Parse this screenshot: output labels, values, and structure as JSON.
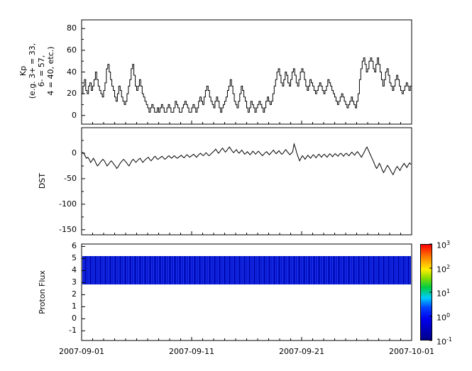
{
  "figure": {
    "background": "#ffffff",
    "line_color": "#000000",
    "band_color": "#0013cc"
  },
  "x_axis": {
    "tick_labels": [
      "2007-09-01",
      "2007-09-11",
      "2007-09-21",
      "2007-10-01"
    ],
    "tick_days": [
      0,
      10,
      20,
      30
    ],
    "total_days": 30
  },
  "chart_data": [
    {
      "id": "kp",
      "type": "line",
      "subtype": "step",
      "ylabel": "Kp (e.g. 3+ = 33, 6- = 57, 4 = 40, etc.)",
      "ylabel_lines": [
        "Kp",
        "(e.g. 3+ = 33,",
        "6- = 57,",
        "4 = 40, etc.)"
      ],
      "x_start": "2007-09-01",
      "x_end": "2007-10-01",
      "points_per_day": 8,
      "yticks": [
        0,
        20,
        40,
        60,
        80
      ],
      "yminor": [
        10,
        30,
        50,
        70
      ],
      "ylim": [
        -8,
        88
      ],
      "values": [
        20,
        27,
        33,
        23,
        20,
        27,
        30,
        23,
        27,
        33,
        40,
        33,
        27,
        23,
        20,
        17,
        23,
        30,
        43,
        47,
        40,
        33,
        27,
        23,
        17,
        13,
        20,
        27,
        23,
        17,
        13,
        10,
        13,
        20,
        27,
        33,
        43,
        47,
        37,
        27,
        23,
        27,
        33,
        27,
        20,
        17,
        13,
        10,
        7,
        3,
        7,
        10,
        7,
        3,
        3,
        7,
        3,
        7,
        10,
        7,
        3,
        3,
        7,
        10,
        7,
        3,
        3,
        7,
        13,
        10,
        7,
        3,
        3,
        7,
        10,
        13,
        10,
        7,
        3,
        3,
        7,
        10,
        7,
        3,
        7,
        13,
        17,
        13,
        10,
        17,
        23,
        27,
        23,
        17,
        13,
        10,
        7,
        13,
        17,
        13,
        7,
        3,
        7,
        10,
        13,
        17,
        23,
        27,
        33,
        27,
        20,
        13,
        10,
        7,
        13,
        20,
        27,
        23,
        17,
        13,
        7,
        3,
        7,
        13,
        10,
        7,
        3,
        7,
        10,
        13,
        10,
        7,
        3,
        7,
        13,
        17,
        13,
        10,
        13,
        20,
        27,
        33,
        40,
        43,
        37,
        30,
        27,
        33,
        40,
        37,
        30,
        27,
        33,
        40,
        43,
        37,
        30,
        27,
        33,
        40,
        43,
        40,
        33,
        27,
        23,
        27,
        33,
        30,
        27,
        23,
        20,
        23,
        27,
        30,
        27,
        23,
        20,
        23,
        27,
        33,
        30,
        27,
        23,
        20,
        17,
        13,
        10,
        13,
        17,
        20,
        17,
        13,
        10,
        7,
        10,
        13,
        17,
        13,
        10,
        7,
        13,
        20,
        33,
        43,
        50,
        53,
        47,
        40,
        43,
        50,
        53,
        50,
        43,
        40,
        47,
        53,
        47,
        40,
        33,
        27,
        33,
        40,
        43,
        37,
        30,
        27,
        23,
        27,
        33,
        37,
        33,
        27,
        23,
        20,
        23,
        27,
        30,
        27,
        23,
        27
      ]
    },
    {
      "id": "dst",
      "type": "line",
      "ylabel": "DST",
      "x_start": "2007-09-01",
      "x_end": "2007-10-01",
      "points_per_day": 8,
      "yticks": [
        0,
        -50,
        -100,
        -150
      ],
      "yminor": [
        25,
        -25,
        -75,
        -125
      ],
      "ylim": [
        -160,
        50
      ],
      "values": [
        2,
        0,
        -5,
        -10,
        -8,
        -12,
        -18,
        -15,
        -10,
        -14,
        -20,
        -25,
        -22,
        -18,
        -15,
        -12,
        -15,
        -20,
        -25,
        -22,
        -18,
        -15,
        -18,
        -22,
        -25,
        -30,
        -27,
        -22,
        -18,
        -15,
        -12,
        -15,
        -18,
        -22,
        -25,
        -20,
        -15,
        -12,
        -15,
        -18,
        -15,
        -12,
        -10,
        -14,
        -18,
        -15,
        -12,
        -10,
        -8,
        -12,
        -15,
        -12,
        -8,
        -6,
        -10,
        -12,
        -10,
        -8,
        -6,
        -9,
        -12,
        -10,
        -7,
        -5,
        -8,
        -10,
        -7,
        -5,
        -8,
        -10,
        -8,
        -6,
        -4,
        -7,
        -9,
        -6,
        -3,
        -5,
        -8,
        -6,
        -4,
        -2,
        -5,
        -8,
        -5,
        -2,
        0,
        -3,
        -5,
        -2,
        1,
        -2,
        -5,
        -3,
        0,
        2,
        5,
        8,
        4,
        0,
        3,
        7,
        10,
        6,
        2,
        5,
        9,
        12,
        8,
        4,
        1,
        4,
        7,
        3,
        0,
        3,
        6,
        2,
        -2,
        0,
        3,
        0,
        -3,
        0,
        4,
        1,
        -2,
        1,
        4,
        1,
        -2,
        -5,
        -2,
        1,
        3,
        0,
        -3,
        0,
        3,
        6,
        2,
        -1,
        2,
        5,
        1,
        -2,
        0,
        4,
        7,
        3,
        0,
        -3,
        0,
        3,
        18,
        10,
        0,
        -8,
        -15,
        -10,
        -5,
        -8,
        -12,
        -8,
        -4,
        -7,
        -10,
        -6,
        -3,
        -6,
        -9,
        -5,
        -2,
        -5,
        -8,
        -4,
        -2,
        -5,
        -8,
        -4,
        -1,
        -4,
        -7,
        -3,
        -1,
        -4,
        -6,
        -2,
        0,
        -3,
        -6,
        -2,
        0,
        -3,
        -5,
        -1,
        2,
        -1,
        -4,
        0,
        3,
        0,
        -4,
        -8,
        -3,
        2,
        8,
        12,
        6,
        0,
        -6,
        -12,
        -18,
        -25,
        -30,
        -26,
        -20,
        -25,
        -32,
        -38,
        -34,
        -28,
        -24,
        -28,
        -33,
        -38,
        -42,
        -36,
        -30,
        -26,
        -30,
        -34,
        -28,
        -24,
        -20,
        -24,
        -28,
        -23,
        -19,
        -22
      ]
    },
    {
      "id": "proton_flux",
      "type": "heatmap",
      "ylabel": "Proton Flux",
      "x_start": "2007-09-01",
      "x_end": "2007-10-01",
      "yticks": [
        -1,
        0,
        1,
        2,
        3,
        4,
        5,
        6
      ],
      "ylim": [
        -1.8,
        6.2
      ],
      "band": {
        "y_min": 2.85,
        "y_max": 5.2,
        "approx_flux": 0.1
      },
      "colorbar": {
        "scale": "log",
        "tick_exponents": [
          3,
          2,
          1,
          0,
          -1
        ],
        "colormap_top_to_bottom": [
          "#ff0000",
          "#ff8800",
          "#ffee00",
          "#00cc44",
          "#00ccff",
          "#0000ee",
          "#00008b"
        ]
      }
    }
  ]
}
